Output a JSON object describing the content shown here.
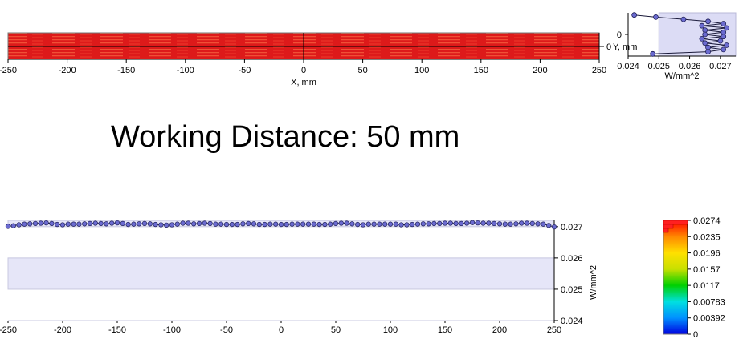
{
  "headline": "Working Distance: 50 mm",
  "chart_data": [
    {
      "type": "heatmap",
      "xlabel": "X, mm",
      "ylabel": "Y, mm",
      "xlim": [
        -250,
        250
      ],
      "xticks": [
        "-250",
        "-200",
        "-150",
        "-100",
        "-50",
        "0",
        "50",
        "100",
        "150",
        "200",
        "250"
      ],
      "yticks": [
        "0"
      ],
      "grid": false
    },
    {
      "type": "line",
      "xlabel": "W/mm^2",
      "xlim": [
        0.024,
        0.0275
      ],
      "xticks": [
        "0.024",
        "0.025",
        "0.026",
        "0.027"
      ],
      "yticks": [
        "0"
      ],
      "band": [
        0.025,
        0.0275
      ],
      "points": [
        [
          0.0242,
          9
        ],
        [
          0.0249,
          8
        ],
        [
          0.0258,
          7
        ],
        [
          0.0266,
          6
        ],
        [
          0.0271,
          5
        ],
        [
          0.0264,
          4
        ],
        [
          0.0272,
          3
        ],
        [
          0.0265,
          2
        ],
        [
          0.0271,
          1
        ],
        [
          0.0265,
          0
        ],
        [
          0.0271,
          -1
        ],
        [
          0.0264,
          -2
        ],
        [
          0.027,
          -3
        ],
        [
          0.0265,
          -4
        ],
        [
          0.0272,
          -5
        ],
        [
          0.0266,
          -6
        ],
        [
          0.0271,
          -7
        ],
        [
          0.0266,
          -8
        ],
        [
          0.0248,
          -9
        ]
      ]
    },
    {
      "type": "line",
      "ylabel": "W/mm^2",
      "xlim": [
        -250,
        250
      ],
      "ylim": [
        0.024,
        0.0272
      ],
      "xticks": [
        "-250",
        "-200",
        "-150",
        "-100",
        "-50",
        "0",
        "50",
        "100",
        "150",
        "200",
        "250"
      ],
      "yticks": [
        "0.024",
        "0.025",
        "0.026",
        "0.027"
      ],
      "bands": [
        [
          0.025,
          0.026
        ],
        [
          0.027,
          0.0272
        ]
      ],
      "x": [
        -250,
        -245,
        -240,
        -235,
        -230,
        -225,
        -220,
        -215,
        -210,
        -205,
        -200,
        -195,
        -190,
        -185,
        -180,
        -175,
        -170,
        -165,
        -160,
        -155,
        -150,
        -145,
        -140,
        -135,
        -130,
        -125,
        -120,
        -115,
        -110,
        -105,
        -100,
        -95,
        -90,
        -85,
        -80,
        -75,
        -70,
        -65,
        -60,
        -55,
        -50,
        -45,
        -40,
        -35,
        -30,
        -25,
        -20,
        -15,
        -10,
        -5,
        0,
        5,
        10,
        15,
        20,
        25,
        30,
        35,
        40,
        45,
        50,
        55,
        60,
        65,
        70,
        75,
        80,
        85,
        90,
        95,
        100,
        105,
        110,
        115,
        120,
        125,
        130,
        135,
        140,
        145,
        150,
        155,
        160,
        165,
        170,
        175,
        180,
        185,
        190,
        195,
        200,
        205,
        210,
        215,
        220,
        225,
        230,
        235,
        240,
        245,
        250
      ],
      "y": [
        0.02701,
        0.02703,
        0.02706,
        0.02708,
        0.02709,
        0.0271,
        0.02711,
        0.02712,
        0.0271,
        0.02707,
        0.02706,
        0.02708,
        0.02708,
        0.02708,
        0.02709,
        0.0271,
        0.02711,
        0.0271,
        0.02709,
        0.02711,
        0.02712,
        0.0271,
        0.02707,
        0.02708,
        0.02709,
        0.0271,
        0.02709,
        0.02707,
        0.02706,
        0.02705,
        0.02706,
        0.02708,
        0.02711,
        0.02711,
        0.02709,
        0.0271,
        0.02711,
        0.0271,
        0.02708,
        0.02708,
        0.02707,
        0.02707,
        0.02707,
        0.02709,
        0.0271,
        0.02709,
        0.02707,
        0.02707,
        0.02708,
        0.02708,
        0.02707,
        0.02707,
        0.02708,
        0.02708,
        0.02708,
        0.02708,
        0.02708,
        0.02707,
        0.02707,
        0.02708,
        0.0271,
        0.02711,
        0.02711,
        0.02709,
        0.02707,
        0.02706,
        0.02708,
        0.02708,
        0.02708,
        0.02708,
        0.02708,
        0.02708,
        0.02706,
        0.02706,
        0.02707,
        0.02708,
        0.02709,
        0.02709,
        0.0271,
        0.0271,
        0.02711,
        0.02711,
        0.0271,
        0.0271,
        0.02711,
        0.02713,
        0.02712,
        0.02711,
        0.02711,
        0.0271,
        0.02709,
        0.02708,
        0.02708,
        0.02709,
        0.02711,
        0.02711,
        0.0271,
        0.02709,
        0.02708,
        0.02704,
        0.02699
      ]
    },
    {
      "type": "heatmap",
      "role": "colorbar",
      "ticks": [
        "0.0274",
        "0.0235",
        "0.0196",
        "0.0157",
        "0.0117",
        "0.00783",
        "0.00392",
        "0"
      ],
      "colors": [
        "#0000e0",
        "#0090ff",
        "#00e0e0",
        "#00d000",
        "#c8e000",
        "#ffe000",
        "#ff8800",
        "#ff0000"
      ],
      "histogram": [
        1.0,
        0.4,
        0.2
      ]
    }
  ]
}
